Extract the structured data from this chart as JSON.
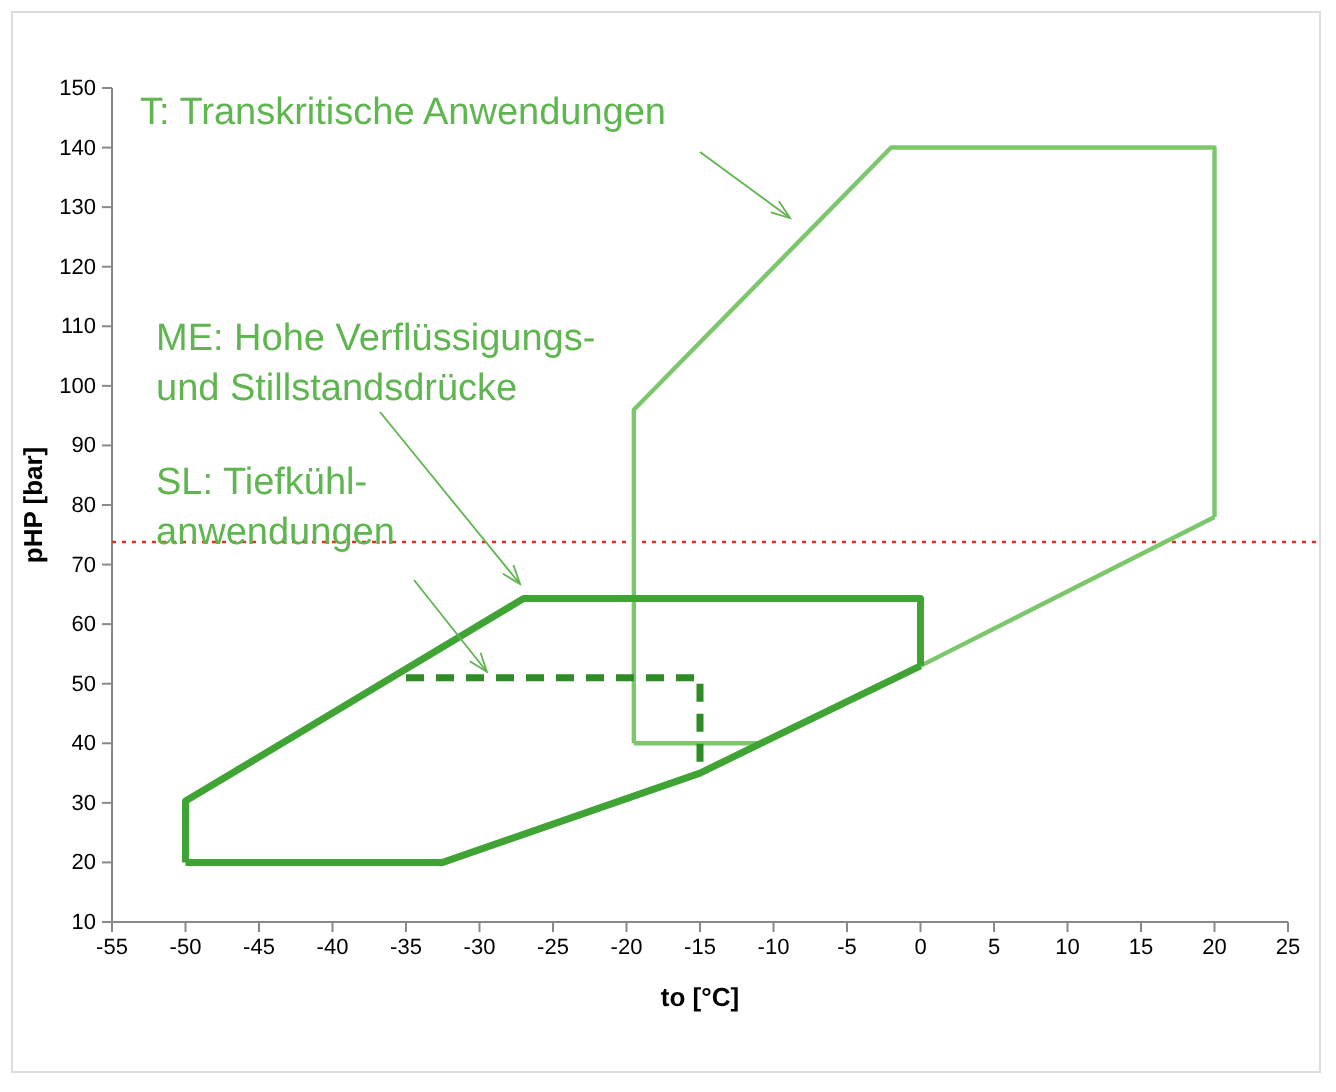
{
  "chart_data": {
    "type": "line",
    "xlabel": "to [°C]",
    "ylabel": "pHP [bar]",
    "xlim": [
      -55,
      25
    ],
    "xticks": [
      -55,
      -50,
      -45,
      -40,
      -35,
      -30,
      -25,
      -20,
      -15,
      -10,
      -5,
      0,
      5,
      10,
      15,
      20,
      25
    ],
    "ylim": [
      10,
      150
    ],
    "yticks": [
      10,
      20,
      30,
      40,
      50,
      60,
      70,
      80,
      90,
      100,
      110,
      120,
      130,
      140,
      150
    ],
    "grid": false,
    "marker": "none",
    "series": [
      {
        "color": "#7cc66c",
        "line_style": "solid",
        "x": [
          -19.5,
          -19.5,
          -2,
          20,
          20
        ],
        "values": [
          40,
          96,
          140,
          140,
          78
        ]
      },
      {
        "color": "#7cc66c",
        "line_style": "solid",
        "x": [
          -19.5,
          -11,
          0,
          20
        ],
        "values": [
          40,
          40,
          53,
          78
        ]
      },
      {
        "color": "#3fa434",
        "line_style": "solid",
        "x": [
          -50,
          -50,
          -27,
          0,
          0
        ],
        "values": [
          20,
          30.3,
          64.3,
          64.3,
          53
        ]
      },
      {
        "color": "#3fa434",
        "line_style": "solid",
        "x": [
          -50,
          -32.5,
          -15,
          0
        ],
        "values": [
          20,
          20,
          35,
          53
        ]
      },
      {
        "color": "#2e8c26",
        "line_style": "dashed",
        "x": [
          -35,
          -15,
          -15
        ],
        "values": [
          51,
          51,
          35
        ]
      }
    ],
    "ref_lines": [
      {
        "axis": "y",
        "value": 73.8,
        "color": "#e0301e",
        "line_style": "dotted"
      }
    ],
    "annotations": [
      "T: Transkritische Anwendungen",
      "ME: Hohe Verflüssigungs-\nund Stillstandsdrücke",
      {
        "text": "SL: Tiefkühl-\nanwendungen",
        "x": -29.5,
        "y": 52
      }
    ]
  }
}
